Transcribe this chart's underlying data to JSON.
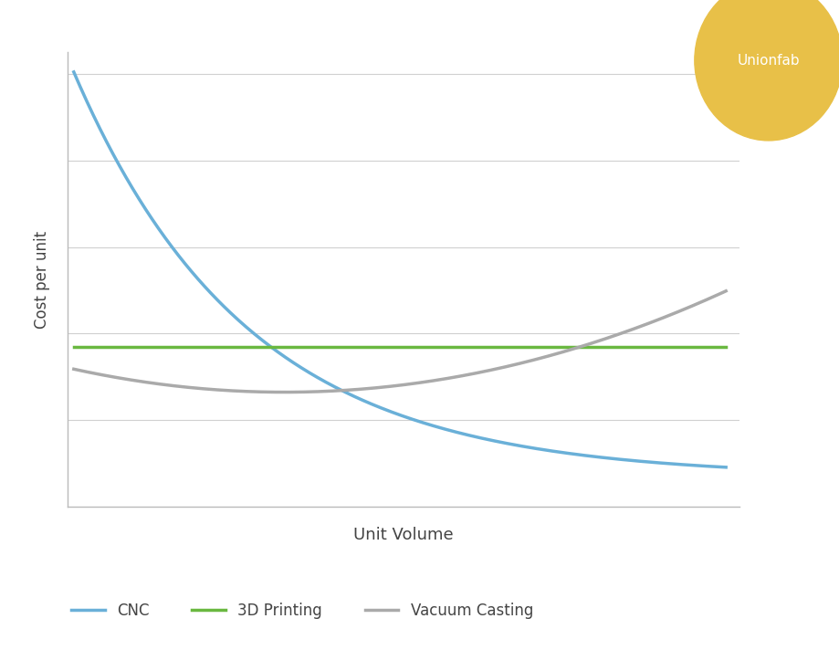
{
  "title": "",
  "xlabel": "Unit Volume",
  "ylabel": "Cost per unit",
  "background_color": "#ffffff",
  "grid_color": "#d0d0d0",
  "cnc_color": "#6ab0d8",
  "printing_color": "#6ab840",
  "casting_color": "#aaaaaa",
  "logo_text": "Unionfab",
  "logo_color": "#e8c048",
  "logo_text_color": "#ffffff",
  "legend_labels": [
    "CNC",
    "3D Printing",
    "Vacuum Casting"
  ],
  "xlabel_fontsize": 13,
  "ylabel_fontsize": 12,
  "legend_fontsize": 12,
  "line_width": 2.5
}
